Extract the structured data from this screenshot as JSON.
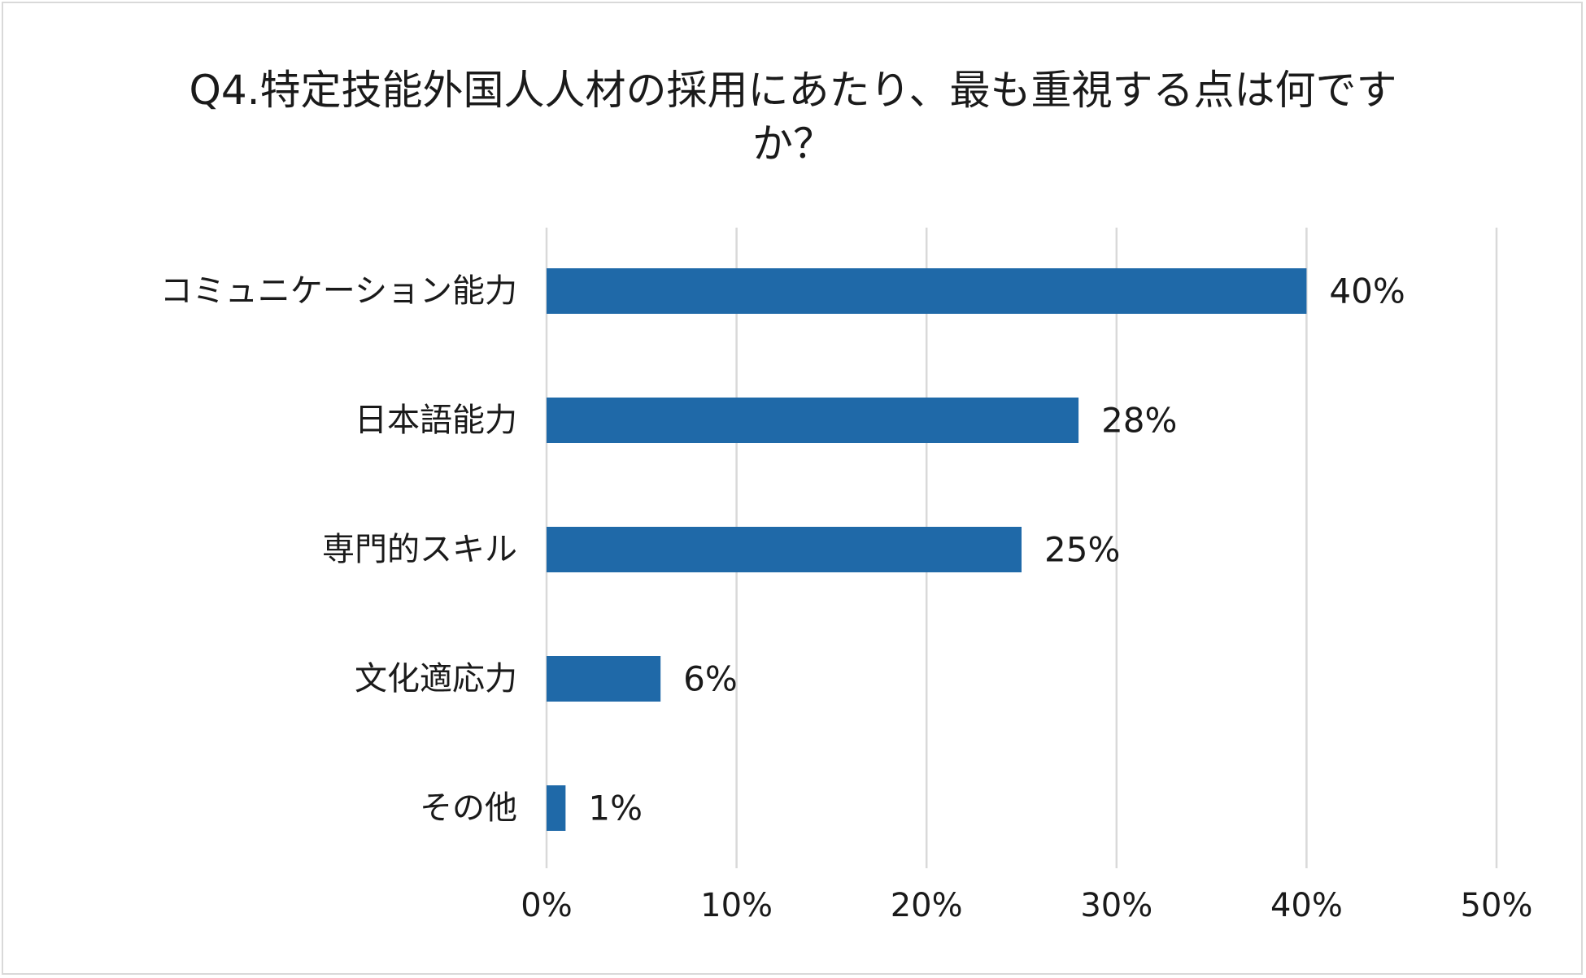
{
  "chart_data": {
    "type": "bar",
    "orientation": "horizontal",
    "title_lines": [
      "Q4.特定技能外国人人材の採用にあたり、最も重視する点は何です",
      "か？"
    ],
    "categories": [
      "コミュニケーション能力",
      "日本語能力",
      "専門的スキル",
      "文化適応力",
      "その他"
    ],
    "values": [
      40,
      28,
      25,
      6,
      1
    ],
    "value_labels": [
      "40%",
      "28%",
      "25%",
      "6%",
      "1%"
    ],
    "xlim": [
      0,
      50
    ],
    "x_ticks": [
      0,
      10,
      20,
      30,
      40,
      50
    ],
    "x_tick_labels": [
      "0%",
      "10%",
      "20%",
      "30%",
      "40%",
      "50%"
    ],
    "grid": true,
    "legend": "none",
    "bar_color": "#1f69a8"
  }
}
